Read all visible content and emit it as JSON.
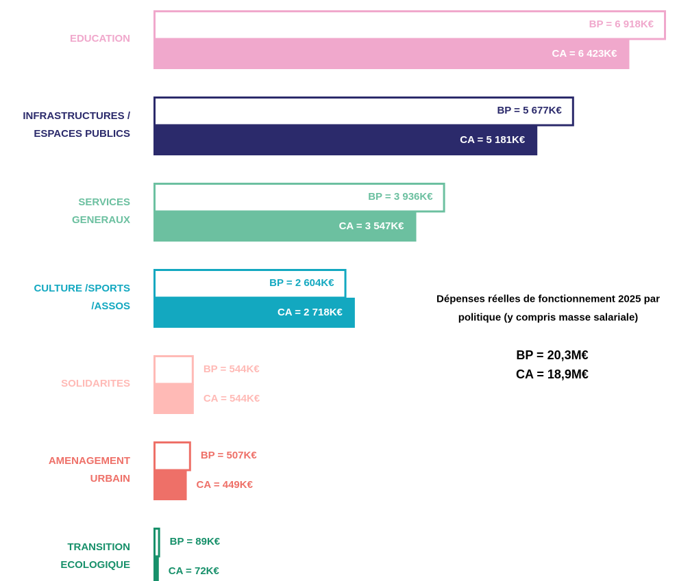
{
  "chart_data": {
    "type": "bar",
    "orientation": "horizontal",
    "categories": [
      "EDUCATION",
      "INFRASTRUCTURES /\nESPACES PUBLICS",
      "SERVICES\nGENERAUX",
      "CULTURE /SPORTS\n/ASSOS",
      "SOLIDARITES",
      "AMENAGEMENT\nURBAIN",
      "TRANSITION\nECOLOGIQUE"
    ],
    "colors": [
      "#f0a8cc",
      "#2b2a6b",
      "#6cc0a0",
      "#13a8c0",
      "#ffbab6",
      "#ee7068",
      "#17906a"
    ],
    "series": [
      {
        "style": "outline",
        "values": [
          6918,
          5677,
          3936,
          2604,
          544,
          507,
          89
        ],
        "value_labels": [
          "BP = 6 918K€",
          "BP = 5 677K€",
          "BP = 3 936K€",
          "BP = 2 604K€",
          "BP = 544K€",
          "BP = 507K€",
          "BP = 89K€"
        ]
      },
      {
        "style": "fill",
        "values": [
          6423,
          5181,
          3547,
          2718,
          544,
          449,
          72
        ],
        "value_labels": [
          "CA = 6 423K€",
          "CA = 5 181K€",
          "CA = 3 547K€",
          "CA = 2 718K€",
          "CA = 544K€",
          "CA = 449K€",
          "CA = 72K€"
        ]
      }
    ],
    "annotations": [
      "Dépenses réelles de fonctionnement 2025 par\npolitique (y compris masse salariale)",
      "BP = 20,3M€\nCA = 18,9M€"
    ]
  }
}
